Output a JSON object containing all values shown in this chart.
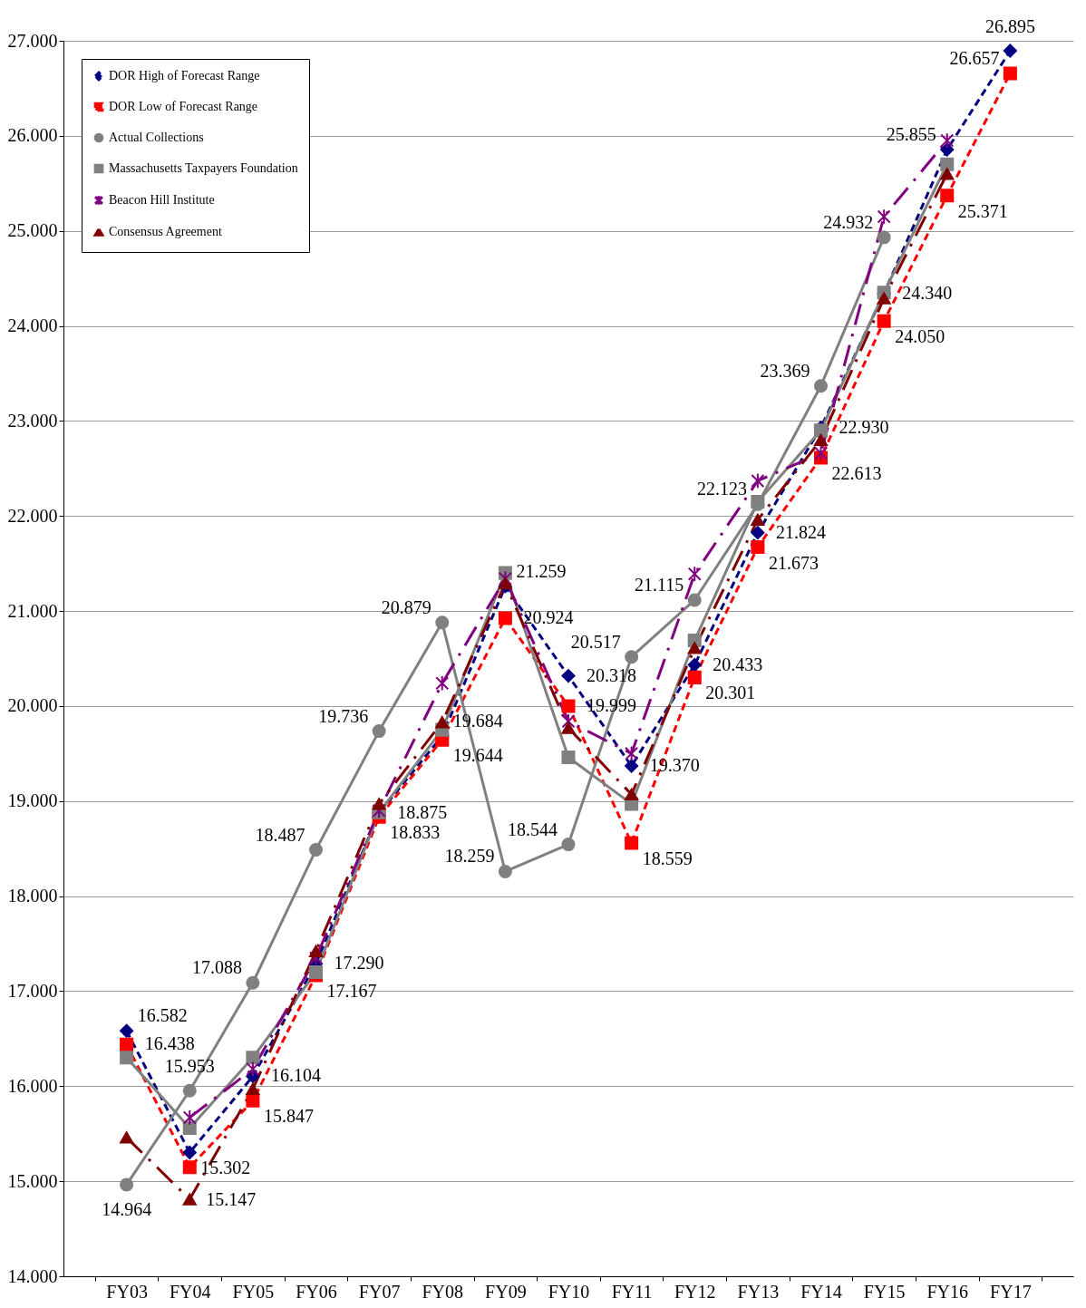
{
  "chart_data": {
    "type": "line",
    "categories": [
      "FY03",
      "FY04",
      "FY05",
      "FY06",
      "FY07",
      "FY08",
      "FY09",
      "FY10",
      "FY11",
      "FY12",
      "FY13",
      "FY14",
      "FY15",
      "FY16",
      "FY17"
    ],
    "ylim": [
      14,
      27
    ],
    "yticks": [
      {
        "value": 14,
        "label": "14.000"
      },
      {
        "value": 15,
        "label": "15.000"
      },
      {
        "value": 16,
        "label": "16.000"
      },
      {
        "value": 17,
        "label": "17.000"
      },
      {
        "value": 18,
        "label": "18.000"
      },
      {
        "value": 19,
        "label": "19.000"
      },
      {
        "value": 20,
        "label": "20.000"
      },
      {
        "value": 21,
        "label": "21.000"
      },
      {
        "value": 22,
        "label": "22.000"
      },
      {
        "value": 23,
        "label": "23.000"
      },
      {
        "value": 24,
        "label": "24.000"
      },
      {
        "value": 25,
        "label": "25.000"
      },
      {
        "value": 26,
        "label": "26.000"
      },
      {
        "value": 27,
        "label": "27.000"
      }
    ],
    "grid": "y",
    "legend": "top left",
    "series": [
      {
        "name": "DOR High of Forecast Range",
        "color": "#000080",
        "line_style": "dashed",
        "marker": "diamond",
        "values": [
          16.582,
          15.302,
          16.104,
          17.29,
          18.875,
          19.684,
          21.259,
          20.318,
          19.37,
          20.433,
          21.824,
          22.93,
          24.34,
          25.855,
          26.895
        ],
        "value_labels": [
          "16.582",
          "15.302",
          "16.104",
          "17.290",
          "18.875",
          "19.684",
          "21.259",
          "20.318",
          "19.370",
          "20.433",
          "21.824",
          "22.930",
          "24.340",
          "25.855",
          "26.895"
        ]
      },
      {
        "name": "DOR Low of Forecast Range",
        "color": "#ff0000",
        "line_style": "dashed",
        "marker": "square",
        "values": [
          16.438,
          15.147,
          15.847,
          17.167,
          18.833,
          19.644,
          20.924,
          19.999,
          18.559,
          20.301,
          21.673,
          22.613,
          24.05,
          25.371,
          26.657
        ],
        "value_labels": [
          "16.438",
          "15.147",
          "15.847",
          "17.167",
          "18.833",
          "19.644",
          "20.924",
          "19.999",
          "18.559",
          "20.301",
          "21.673",
          "22.613",
          "24.050",
          "25.371",
          "26.657"
        ]
      },
      {
        "name": "Actual Collections",
        "color": "#808080",
        "line_style": "solid",
        "marker": "circle",
        "values": [
          14.964,
          15.953,
          17.088,
          18.487,
          19.736,
          20.879,
          18.259,
          18.544,
          20.517,
          21.115,
          22.123,
          23.369,
          24.932,
          null,
          null
        ],
        "value_labels": [
          "14.964",
          "15.953",
          "17.088",
          "18.487",
          "19.736",
          "20.879",
          "18.259",
          "18.544",
          "20.517",
          "21.115",
          "22.123",
          "23.369",
          "24.932",
          null,
          null
        ]
      },
      {
        "name": "Massachusetts Taxpayers Foundation",
        "color": "#808080",
        "line_style": "solid",
        "marker": "square",
        "values": [
          16.3,
          15.56,
          16.3,
          17.2,
          18.88,
          19.75,
          21.4,
          19.46,
          18.97,
          20.69,
          22.15,
          22.9,
          24.35,
          25.7,
          null
        ]
      },
      {
        "name": "Beacon Hill Institute",
        "color": "#800080",
        "line_style": "dashdot",
        "marker": "cross",
        "values": [
          null,
          15.67,
          16.18,
          17.35,
          18.9,
          20.24,
          21.34,
          19.84,
          19.5,
          21.39,
          22.37,
          22.66,
          25.15,
          25.95,
          null
        ]
      },
      {
        "name": "Consensus Agreement",
        "color": "#800000",
        "line_style": "dashdot",
        "marker": "triangle",
        "values": [
          15.46,
          14.81,
          15.97,
          17.42,
          18.97,
          19.83,
          21.29,
          19.77,
          19.07,
          20.61,
          21.96,
          22.8,
          24.29,
          25.6,
          null
        ]
      }
    ]
  }
}
